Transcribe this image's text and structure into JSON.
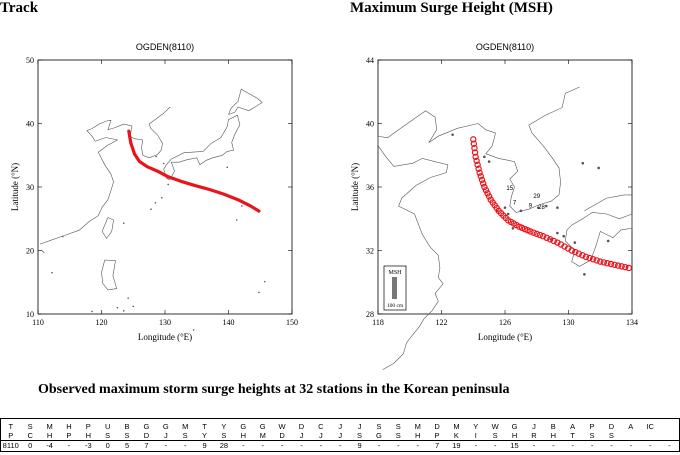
{
  "headings": {
    "track": "Track",
    "msh": "Maximum Surge Height (MSH)"
  },
  "obs_title": "Observed maximum storm surge heights at 32 stations in the Korean peninsula",
  "chart_data": [
    {
      "type": "line",
      "title": "OGDEN(8110)",
      "xlabel": "Longitude (°E)",
      "ylabel": "Latitude (°N)",
      "xlim": [
        110,
        150
      ],
      "ylim": [
        10,
        50
      ],
      "xticks": [
        110,
        120,
        130,
        140,
        150
      ],
      "yticks": [
        10,
        20,
        30,
        40,
        50
      ],
      "track_color": "#e8141a",
      "series": [
        {
          "x": [
            124.3,
            124.6,
            125.2,
            126.0,
            127.2,
            128.8,
            130.5,
            132.5,
            134.8,
            137.0,
            139.2,
            141.5,
            143.5,
            144.8
          ],
          "y": [
            38.8,
            37.0,
            35.2,
            34.0,
            33.2,
            32.5,
            31.6,
            30.9,
            30.2,
            29.6,
            28.9,
            28.0,
            27.0,
            26.2
          ]
        }
      ]
    },
    {
      "type": "scatter",
      "title": "OGDEN(8110)",
      "xlabel": "Longitude (°E)",
      "ylabel": "Latitude (°N)",
      "xlim": [
        118,
        134
      ],
      "ylim": [
        28,
        44
      ],
      "xticks": [
        118,
        122,
        126,
        130,
        134
      ],
      "yticks": [
        28,
        32,
        36,
        40,
        44
      ],
      "marker_color": "#e8141a",
      "legend": {
        "title": "MSH",
        "label": "100 cm",
        "placement": "bottom-left"
      },
      "series": [
        {
          "x": [
            124.0,
            124.15,
            124.4,
            124.7,
            125.1,
            125.6,
            126.2,
            126.9,
            127.6,
            128.4,
            129.3,
            130.2,
            131.1,
            132.0,
            132.9,
            133.8
          ],
          "y": [
            39.0,
            37.9,
            36.9,
            36.0,
            35.2,
            34.5,
            33.9,
            33.5,
            33.2,
            32.9,
            32.5,
            32.0,
            31.6,
            31.3,
            31.1,
            30.9
          ]
        }
      ],
      "annotations": [
        "15",
        "29",
        "28",
        "9",
        "7"
      ]
    },
    {
      "type": "table",
      "header_line1": [
        "T",
        "S",
        "M",
        "H",
        "P",
        "U",
        "B",
        "G",
        "G",
        "M",
        "T",
        "Y",
        "G",
        "G",
        "W",
        "D",
        "C",
        "J",
        "J",
        "S",
        "S",
        "M",
        "D",
        "M",
        "Y",
        "W",
        "G",
        "J",
        "B",
        "A",
        "P",
        "D",
        "A",
        "IC"
      ],
      "header_line2": [
        "P",
        "C",
        "H",
        "P",
        "H",
        "S",
        "S",
        "D",
        "J",
        "S",
        "Y",
        "S",
        "H",
        "M",
        "D",
        "J",
        "J",
        "J",
        "S",
        "G",
        "S",
        "H",
        "P",
        "K",
        "I",
        "S",
        "H",
        "R",
        "H",
        "T",
        "S",
        "S",
        "",
        ""
      ],
      "rows": [
        [
          "8110",
          "0",
          "-4",
          "-",
          "-3",
          "0",
          "5",
          "7",
          "-",
          "-",
          "9",
          "28",
          "-",
          "-",
          "-",
          "-",
          "-",
          "-",
          "9",
          "-",
          "-",
          "-",
          "7",
          "19",
          "-",
          "-",
          "15",
          "-",
          "-",
          "-",
          "-",
          "-",
          "-",
          "-",
          "-"
        ]
      ]
    }
  ]
}
